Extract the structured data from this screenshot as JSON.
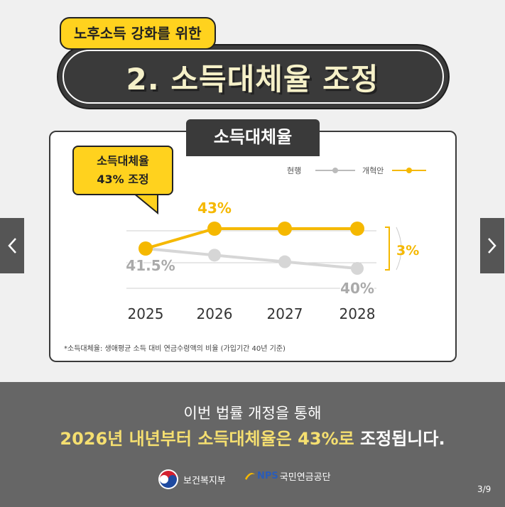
{
  "header": {
    "tag": "노후소득 강화를 위한",
    "title": "2. 소득대체율 조정"
  },
  "chart_card": {
    "tab_label": "소득대체율",
    "callout_line1": "소득대체율",
    "callout_line2": "43% 조정",
    "legend": {
      "current": "현행",
      "reform": "개혁안"
    },
    "range_label": "3%",
    "footnote": "*소득대체율: 생애평균 소득 대비 연금수령액의 비율 (가입기간 40년 기준)"
  },
  "chart_data": {
    "type": "line",
    "x": [
      "2025",
      "2026",
      "2027",
      "2028"
    ],
    "series": [
      {
        "name": "현행",
        "values": [
          41.5,
          41,
          40.5,
          40
        ],
        "color": "#d6d6d6"
      },
      {
        "name": "개혁안",
        "values": [
          41.5,
          43,
          43,
          43
        ],
        "color": "#f5b800"
      }
    ],
    "data_labels": [
      {
        "text": "41.5%"
      },
      {
        "text": "43%"
      },
      {
        "text": "40%"
      }
    ],
    "ylim": [
      39.5,
      43.5
    ],
    "grid": true
  },
  "footer": {
    "line1": "이번 법률 개정을 통해",
    "line2_highlight": "2026년 내년부터 소득대체율은 43%로",
    "line2_rest": "조정됩니다.",
    "logo1": "보건복지부",
    "logo2_mark": "NPS",
    "logo2": "국민연금공단",
    "page": "3/9"
  },
  "nav": {
    "prev_icon": "chevron-left-icon",
    "next_icon": "chevron-right-icon"
  },
  "colors": {
    "accent_yellow": "#ffd21e",
    "line_yellow": "#f5b800",
    "dark": "#3a3a3a",
    "gray_line": "#d6d6d6"
  }
}
